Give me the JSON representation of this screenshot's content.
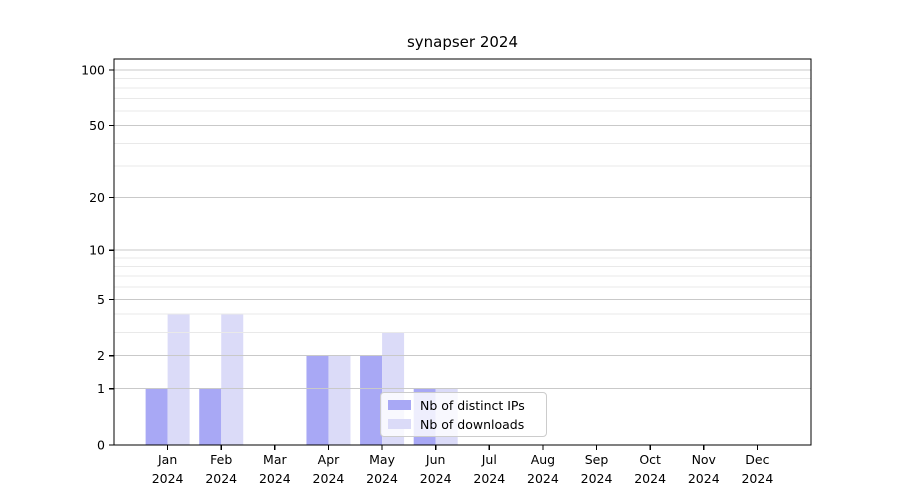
{
  "chart_data": {
    "type": "bar",
    "title": "synapser 2024",
    "categories": [
      "Jan 2024",
      "Feb 2024",
      "Mar 2024",
      "Apr 2024",
      "May 2024",
      "Jun 2024",
      "Jul 2024",
      "Aug 2024",
      "Sep 2024",
      "Oct 2024",
      "Nov 2024",
      "Dec 2024"
    ],
    "x_tick_months": [
      "Jan",
      "Feb",
      "Mar",
      "Apr",
      "May",
      "Jun",
      "Jul",
      "Aug",
      "Sep",
      "Oct",
      "Nov",
      "Dec"
    ],
    "x_tick_year": "2024",
    "series": [
      {
        "name": "Nb of distinct IPs",
        "color": "#a8a8f5",
        "values": [
          1,
          1,
          0,
          2,
          2,
          1,
          0,
          0,
          0,
          0,
          0,
          0
        ]
      },
      {
        "name": "Nb of downloads",
        "color": "#dbdbf8",
        "values": [
          4,
          4,
          0,
          2,
          3,
          1,
          0,
          0,
          0,
          0,
          0,
          0
        ]
      }
    ],
    "y_axis": {
      "scale": "log10(value+1)",
      "major_ticks": [
        0,
        1,
        2,
        5,
        10,
        20,
        50,
        100
      ],
      "minor_gridlines": [
        3,
        4,
        6,
        7,
        8,
        9,
        30,
        40,
        60,
        70,
        80,
        90
      ],
      "ylim": [
        0,
        115
      ]
    },
    "grid": {
      "orientation": "horizontal",
      "drawn_above_bars": true
    },
    "legend_position": "inside-bottom-center",
    "xlabel": "",
    "ylabel": ""
  },
  "colors": {
    "distinct_ips_bar": "#a8a8f5",
    "downloads_bar": "#dbdbf8",
    "grid_major": "#c9c9c9",
    "grid_minor": "#e9e9e9",
    "axis_spine": "#000000",
    "legend_border": "#cccccc",
    "background": "#ffffff"
  }
}
